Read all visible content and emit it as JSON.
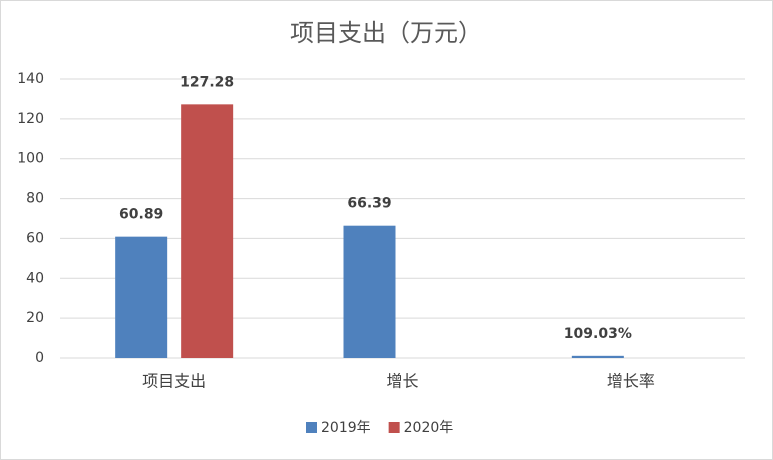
{
  "chart_data": {
    "type": "bar",
    "title": "项目支出（万元）",
    "categories": [
      "项目支出",
      "增长",
      "增长率"
    ],
    "series": [
      {
        "name": "2019年",
        "color": "#4f81bd",
        "values": [
          60.89,
          66.39,
          1.0903
        ],
        "value_labels": [
          "60.89",
          "66.39",
          "109.03%"
        ]
      },
      {
        "name": "2020年",
        "color": "#c0504d",
        "values": [
          127.28,
          null,
          null
        ]
      }
    ],
    "ylim": [
      0,
      140
    ],
    "yticks": [
      0,
      20,
      40,
      60,
      80,
      100,
      120,
      140
    ],
    "grid": true,
    "legend": "bottom"
  }
}
